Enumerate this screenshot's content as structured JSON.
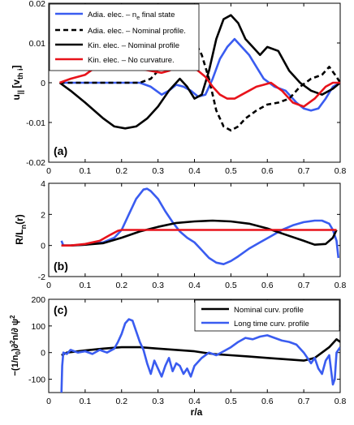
{
  "figure": {
    "xlabel": "r/a",
    "x_ticks": [
      "0",
      "0.1",
      "0.2",
      "0.3",
      "0.4",
      "0.5",
      "0.6",
      "0.7",
      "0.8"
    ]
  },
  "chart_data": [
    {
      "panel_label": "(a)",
      "type": "line",
      "ylabel": "u||[vth,i]",
      "ylabel_main": "u",
      "ylabel_sub": "|| ",
      "ylabel_bracket": "[v",
      "ylabel_bracket_sub": "th i",
      "ylabel_close": "]",
      "xlim": [
        0,
        0.8
      ],
      "ylim": [
        -0.02,
        0.02
      ],
      "y_ticks": [
        -0.02,
        -0.01,
        0,
        0.01,
        0.02
      ],
      "y_tick_labels": [
        "-0.02",
        "-0.01",
        "0",
        "0.01",
        "0.02"
      ],
      "legend_position": "top-left",
      "series": [
        {
          "name": "Adia. elec. – n_e final state",
          "legend_text": "Adia. elec. – n",
          "legend_sub": "e",
          "legend_tail": " final state",
          "color": "#3a5cf0",
          "dash": "",
          "x": [
            0.03,
            0.06,
            0.1,
            0.15,
            0.2,
            0.25,
            0.28,
            0.31,
            0.33,
            0.35,
            0.37,
            0.39,
            0.41,
            0.43,
            0.45,
            0.47,
            0.49,
            0.51,
            0.53,
            0.55,
            0.57,
            0.59,
            0.62,
            0.65,
            0.68,
            0.7,
            0.72,
            0.74,
            0.76,
            0.78,
            0.8
          ],
          "y": [
            0.0,
            0.0,
            0.0,
            0.0,
            0.0,
            0.0,
            -0.001,
            -0.003,
            -0.002,
            -0.0005,
            -0.001,
            -0.002,
            -0.0035,
            -0.003,
            0.001,
            0.006,
            0.009,
            0.011,
            0.009,
            0.007,
            0.004,
            0.001,
            -0.001,
            -0.002,
            -0.005,
            -0.0065,
            -0.007,
            -0.0065,
            -0.004,
            -0.001,
            0.0
          ]
        },
        {
          "name": "Adia. elec. – Nominal profile.",
          "legend_text": "Adia. elec. – Nominal profile.",
          "color": "#000000",
          "dash": "6,4",
          "x": [
            0.03,
            0.06,
            0.1,
            0.15,
            0.2,
            0.25,
            0.28,
            0.3,
            0.32,
            0.34,
            0.36,
            0.38,
            0.4,
            0.42,
            0.44,
            0.46,
            0.48,
            0.5,
            0.52,
            0.54,
            0.57,
            0.6,
            0.63,
            0.66,
            0.69,
            0.72,
            0.75,
            0.77,
            0.79,
            0.8
          ],
          "y": [
            0.0,
            0.0,
            0.0,
            0.0,
            0.0,
            0.0,
            0.001,
            0.003,
            0.006,
            0.009,
            0.011,
            0.0115,
            0.0105,
            0.007,
            0.001,
            -0.007,
            -0.011,
            -0.012,
            -0.011,
            -0.009,
            -0.007,
            -0.0055,
            -0.005,
            -0.004,
            -0.001,
            0.001,
            0.002,
            0.004,
            0.0015,
            0.0
          ]
        },
        {
          "name": "Kin. elec. – Nominal profile",
          "legend_text": "Kin. elec. – Nominal profile",
          "color": "#000000",
          "dash": "",
          "x": [
            0.03,
            0.06,
            0.1,
            0.15,
            0.18,
            0.21,
            0.24,
            0.27,
            0.3,
            0.33,
            0.36,
            0.38,
            0.4,
            0.42,
            0.44,
            0.46,
            0.48,
            0.5,
            0.52,
            0.54,
            0.56,
            0.58,
            0.6,
            0.63,
            0.66,
            0.69,
            0.72,
            0.75,
            0.78,
            0.8
          ],
          "y": [
            0.0,
            -0.002,
            -0.005,
            -0.009,
            -0.011,
            -0.0115,
            -0.011,
            -0.009,
            -0.006,
            -0.002,
            0.001,
            -0.001,
            -0.004,
            -0.003,
            0.003,
            0.011,
            0.016,
            0.017,
            0.015,
            0.011,
            0.009,
            0.007,
            0.009,
            0.008,
            0.003,
            0.0,
            -0.002,
            -0.003,
            -0.0015,
            0.0
          ]
        },
        {
          "name": "Kin. elec. – No curvature.",
          "legend_text": "Kin. elec. – No curvature.",
          "color": "#e8131b",
          "dash": "",
          "x": [
            0.03,
            0.06,
            0.1,
            0.13,
            0.16,
            0.19,
            0.22,
            0.25,
            0.28,
            0.31,
            0.33,
            0.35,
            0.37,
            0.39,
            0.41,
            0.43,
            0.45,
            0.47,
            0.49,
            0.51,
            0.53,
            0.55,
            0.57,
            0.59,
            0.61,
            0.64,
            0.67,
            0.7,
            0.73,
            0.76,
            0.78,
            0.8
          ],
          "y": [
            0.0,
            0.001,
            0.002,
            0.004,
            0.0055,
            0.005,
            0.004,
            0.0035,
            0.003,
            0.0025,
            0.003,
            0.004,
            0.005,
            0.0045,
            0.003,
            0.0015,
            -0.001,
            -0.003,
            -0.004,
            -0.004,
            -0.003,
            -0.002,
            -0.001,
            -0.0005,
            0.0,
            -0.002,
            -0.005,
            -0.006,
            -0.004,
            -0.001,
            0.0,
            0.0
          ]
        }
      ]
    },
    {
      "panel_label": "(b)",
      "type": "line",
      "ylabel": "R/Ln(r)",
      "ylabel_main": "R/L",
      "ylabel_sub": "n",
      "ylabel_tail": "(r)",
      "xlim": [
        0,
        0.8
      ],
      "ylim": [
        -2,
        4
      ],
      "y_ticks": [
        -2,
        0,
        2,
        4
      ],
      "y_tick_labels": [
        "-2",
        "0",
        "2",
        "4"
      ],
      "series": [
        {
          "name": "blue",
          "color": "#3a5cf0",
          "dash": "",
          "x": [
            0.035,
            0.04,
            0.06,
            0.1,
            0.15,
            0.18,
            0.2,
            0.22,
            0.24,
            0.26,
            0.27,
            0.28,
            0.3,
            0.32,
            0.34,
            0.36,
            0.38,
            0.4,
            0.42,
            0.44,
            0.46,
            0.48,
            0.5,
            0.52,
            0.55,
            0.58,
            0.61,
            0.64,
            0.67,
            0.7,
            0.73,
            0.75,
            0.77,
            0.78,
            0.79,
            0.795
          ],
          "y": [
            0.3,
            0.0,
            0.0,
            0.05,
            0.2,
            0.5,
            1.0,
            2.0,
            3.0,
            3.6,
            3.65,
            3.5,
            3.0,
            2.2,
            1.5,
            0.9,
            0.5,
            0.2,
            -0.3,
            -0.8,
            -1.1,
            -1.2,
            -1.0,
            -0.7,
            -0.2,
            0.2,
            0.6,
            1.0,
            1.3,
            1.5,
            1.6,
            1.6,
            1.4,
            1.0,
            0.3,
            -0.8
          ]
        },
        {
          "name": "black",
          "color": "#000000",
          "dash": "",
          "x": [
            0.035,
            0.06,
            0.1,
            0.15,
            0.2,
            0.25,
            0.3,
            0.35,
            0.4,
            0.45,
            0.5,
            0.55,
            0.6,
            0.65,
            0.7,
            0.73,
            0.76,
            0.78,
            0.79
          ],
          "y": [
            0.0,
            0.0,
            0.05,
            0.15,
            0.5,
            0.9,
            1.2,
            1.45,
            1.55,
            1.6,
            1.55,
            1.4,
            1.1,
            0.7,
            0.3,
            0.05,
            0.1,
            0.5,
            1.0
          ]
        },
        {
          "name": "red",
          "color": "#e8131b",
          "dash": "",
          "x": [
            0.035,
            0.06,
            0.1,
            0.14,
            0.17,
            0.19,
            0.2,
            0.22,
            0.3,
            0.4,
            0.5,
            0.6,
            0.7,
            0.75,
            0.79
          ],
          "y": [
            0.0,
            0.0,
            0.1,
            0.3,
            0.7,
            0.95,
            1.0,
            1.0,
            1.0,
            1.0,
            1.0,
            1.0,
            1.0,
            1.0,
            1.0
          ]
        }
      ]
    },
    {
      "panel_label": "(c)",
      "type": "line",
      "ylabel": "-(1/n0)∂²n/∂ψ²",
      "ylabel_text": "−(1/n",
      "ylabel_sub": "0",
      "ylabel_tail": ")∂",
      "ylabel_sup": "2",
      "ylabel_tail2": "n/∂ ψ",
      "ylabel_sup2": "2",
      "xlim": [
        0,
        0.8
      ],
      "ylim": [
        -150,
        200
      ],
      "y_ticks": [
        -100,
        0,
        100,
        200
      ],
      "y_tick_labels": [
        "-100",
        "0",
        "100",
        "200"
      ],
      "legend_position": "top-right",
      "series": [
        {
          "name": "Nominal curv. profile",
          "legend_text": "Nominal curv. profile",
          "color": "#000000",
          "dash": "",
          "x": [
            0.035,
            0.05,
            0.1,
            0.15,
            0.2,
            0.25,
            0.3,
            0.35,
            0.4,
            0.45,
            0.5,
            0.55,
            0.6,
            0.65,
            0.7,
            0.73,
            0.75,
            0.77,
            0.79,
            0.8
          ],
          "y": [
            -10,
            0,
            8,
            15,
            20,
            20,
            15,
            10,
            5,
            -5,
            -10,
            -15,
            -20,
            -25,
            -30,
            -20,
            0,
            20,
            50,
            40
          ]
        },
        {
          "name": "Long time curv. profile",
          "legend_text": "Long time curv. profile",
          "color": "#3a5cf0",
          "dash": "",
          "x": [
            0.035,
            0.037,
            0.04,
            0.05,
            0.06,
            0.08,
            0.1,
            0.12,
            0.14,
            0.16,
            0.18,
            0.19,
            0.2,
            0.21,
            0.22,
            0.23,
            0.24,
            0.25,
            0.26,
            0.27,
            0.28,
            0.29,
            0.3,
            0.31,
            0.32,
            0.33,
            0.34,
            0.35,
            0.36,
            0.37,
            0.38,
            0.39,
            0.4,
            0.42,
            0.44,
            0.46,
            0.48,
            0.5,
            0.52,
            0.54,
            0.56,
            0.58,
            0.6,
            0.62,
            0.64,
            0.66,
            0.68,
            0.7,
            0.72,
            0.73,
            0.74,
            0.75,
            0.76,
            0.77,
            0.78,
            0.785,
            0.79,
            0.8
          ],
          "y": [
            -150,
            -50,
            0,
            -5,
            10,
            0,
            5,
            -5,
            10,
            0,
            15,
            40,
            70,
            110,
            125,
            120,
            80,
            40,
            10,
            -40,
            -80,
            -30,
            -60,
            -90,
            -50,
            -20,
            -70,
            -40,
            -50,
            -80,
            -60,
            -90,
            -50,
            -20,
            0,
            -10,
            5,
            20,
            40,
            55,
            50,
            60,
            65,
            55,
            45,
            40,
            30,
            0,
            -40,
            -20,
            -60,
            -80,
            -30,
            -10,
            -120,
            -100,
            0,
            20
          ]
        }
      ]
    }
  ]
}
